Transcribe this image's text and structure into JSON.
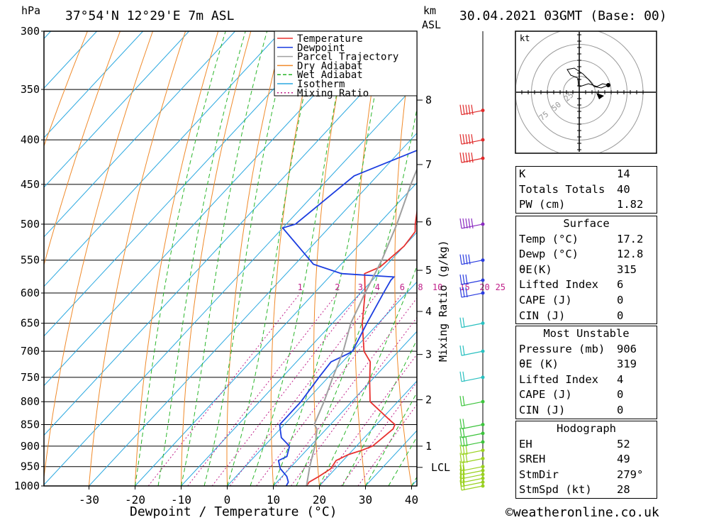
{
  "header": {
    "location": "37°54'N 12°29'E 7m ASL",
    "datetime": "30.04.2021 03GMT (Base: 00)",
    "pressure_unit": "hPa",
    "height_unit_top": "km",
    "height_unit_bottom": "ASL"
  },
  "chart_data": {
    "type": "line",
    "title": "37°54'N 12°29'E 7m ASL",
    "xlabel": "Dewpoint / Temperature (°C)",
    "ylabel": "hPa",
    "xlim": [
      -40,
      40
    ],
    "ylim": [
      1000,
      300
    ],
    "y_scale": "log",
    "x_ticks": [
      -30,
      -20,
      -10,
      0,
      10,
      20,
      30,
      40
    ],
    "y_ticks": [
      300,
      350,
      400,
      450,
      500,
      550,
      600,
      650,
      700,
      750,
      800,
      850,
      900,
      950,
      1000
    ],
    "right_axis_label": "Mixing Ratio (g/kg)",
    "height_ticks_km": [
      "8",
      "7",
      "6",
      "5",
      "4",
      "3",
      "2",
      "1",
      "LCL"
    ],
    "mixing_ratio_labels": [
      "1",
      "2",
      "3",
      "4",
      "6",
      "8",
      "10",
      "15",
      "20",
      "25"
    ],
    "legend": [
      "Temperature",
      "Dewpoint",
      "Parcel Trajectory",
      "Dry Adiabat",
      "Wet Adiabat",
      "Isotherm",
      "Mixing Ratio"
    ],
    "legend_position": "top-right",
    "series": [
      {
        "name": "Temperature",
        "color": "#e8312f",
        "points": [
          [
            17.2,
            1000
          ],
          [
            17,
            990
          ],
          [
            18,
            975
          ],
          [
            19,
            955
          ],
          [
            18.5,
            935
          ],
          [
            20,
            920
          ],
          [
            22,
            910
          ],
          [
            23.5,
            900
          ],
          [
            24,
            880
          ],
          [
            24.5,
            860
          ],
          [
            24,
            850
          ],
          [
            22,
            840
          ],
          [
            14,
            800
          ],
          [
            10,
            760
          ],
          [
            6,
            720
          ],
          [
            2.5,
            700
          ],
          [
            -3.5,
            650
          ],
          [
            -9,
            600
          ],
          [
            -13,
            570
          ],
          [
            -11,
            560
          ],
          [
            -10,
            530
          ],
          [
            -10.5,
            510
          ],
          [
            -12,
            500
          ],
          [
            -16,
            470
          ],
          [
            -19,
            450
          ],
          [
            -22,
            430
          ],
          [
            -25,
            410
          ],
          [
            -26,
            400
          ],
          [
            -29,
            380
          ],
          [
            -32,
            365
          ],
          [
            -34,
            350
          ],
          [
            -37,
            335
          ],
          [
            -38,
            325
          ],
          [
            -41,
            300
          ]
        ]
      },
      {
        "name": "Dewpoint",
        "color": "#1b3de0",
        "points": [
          [
            12.8,
            1000
          ],
          [
            12.5,
            990
          ],
          [
            11,
            975
          ],
          [
            8,
            955
          ],
          [
            6,
            935
          ],
          [
            7,
            925
          ],
          [
            5.5,
            900
          ],
          [
            2,
            880
          ],
          [
            0,
            860
          ],
          [
            -1,
            850
          ],
          [
            -1,
            800
          ],
          [
            -2,
            750
          ],
          [
            -2.5,
            720
          ],
          [
            -0.5,
            705
          ],
          [
            0,
            700
          ],
          [
            -2.5,
            650
          ],
          [
            -5,
            600
          ],
          [
            -6,
            580
          ],
          [
            -6,
            575
          ],
          [
            -18,
            570
          ],
          [
            -26,
            556
          ],
          [
            -40,
            505
          ],
          [
            -38,
            500
          ],
          [
            -35,
            440
          ],
          [
            -23,
            400
          ],
          [
            -30,
            370
          ],
          [
            -16,
            365
          ],
          [
            -18,
            340
          ],
          [
            -20,
            300
          ]
        ]
      },
      {
        "name": "Parcel Trajectory",
        "color": "#a0a0a0",
        "points": [
          [
            17.2,
            1000
          ],
          [
            14,
            950
          ],
          [
            12.5,
            925
          ],
          [
            11,
            900
          ],
          [
            8,
            860
          ],
          [
            6.5,
            850
          ],
          [
            4,
            800
          ],
          [
            1,
            750
          ],
          [
            -2,
            700
          ],
          [
            -6,
            650
          ],
          [
            -9,
            600
          ],
          [
            -12,
            550
          ],
          [
            -16,
            500
          ],
          [
            -21,
            450
          ],
          [
            -26,
            400
          ],
          [
            -33,
            350
          ],
          [
            -41,
            300
          ]
        ]
      }
    ],
    "hodograph": {
      "unit": "kt",
      "ring_labels": [
        "25",
        "50",
        "75"
      ]
    },
    "wind_profile": {
      "speeds_kt": [
        15,
        15,
        15,
        20,
        20,
        20,
        25,
        25,
        25,
        20,
        20,
        20,
        20,
        20,
        20,
        30,
        30,
        40,
        50,
        50,
        55,
        55
      ],
      "pressures": [
        1000,
        990,
        980,
        970,
        960,
        950,
        930,
        910,
        890,
        870,
        850,
        800,
        750,
        700,
        650,
        600,
        580,
        550,
        500,
        420,
        400,
        370
      ]
    }
  },
  "indices": [
    {
      "label": "K",
      "value": "14"
    },
    {
      "label": "Totals Totals",
      "value": "40"
    },
    {
      "label": "PW (cm)",
      "value": "1.82"
    }
  ],
  "surface": {
    "title": "Surface",
    "rows": [
      {
        "label": "Temp (°C)",
        "value": "17.2"
      },
      {
        "label": "Dewp (°C)",
        "value": "12.8"
      },
      {
        "label": "θE(K)",
        "value": "315"
      },
      {
        "label": "Lifted Index",
        "value": "6"
      },
      {
        "label": "CAPE (J)",
        "value": "0"
      },
      {
        "label": "CIN (J)",
        "value": "0"
      }
    ]
  },
  "most_unstable": {
    "title": "Most Unstable",
    "rows": [
      {
        "label": "Pressure (mb)",
        "value": "906"
      },
      {
        "label": "θE (K)",
        "value": "319"
      },
      {
        "label": "Lifted Index",
        "value": "4"
      },
      {
        "label": "CAPE (J)",
        "value": "0"
      },
      {
        "label": "CIN (J)",
        "value": "0"
      }
    ]
  },
  "hodograph_table": {
    "title": "Hodograph",
    "rows": [
      {
        "label": "EH",
        "value": "52"
      },
      {
        "label": "SREH",
        "value": "49"
      },
      {
        "label": "StmDir",
        "value": "279°"
      },
      {
        "label": "StmSpd (kt)",
        "value": "28"
      }
    ]
  },
  "footer": {
    "copyright": "©weatheronline.co.uk"
  },
  "colors": {
    "temperature": "#e8312f",
    "dewpoint": "#1b3de0",
    "parcel": "#a0a0a0",
    "dry_adiabat": "#f08a2a",
    "wet_adiabat": "#2ab52a",
    "isotherm": "#2aa8e0",
    "mixing_ratio": "#c0208a"
  }
}
